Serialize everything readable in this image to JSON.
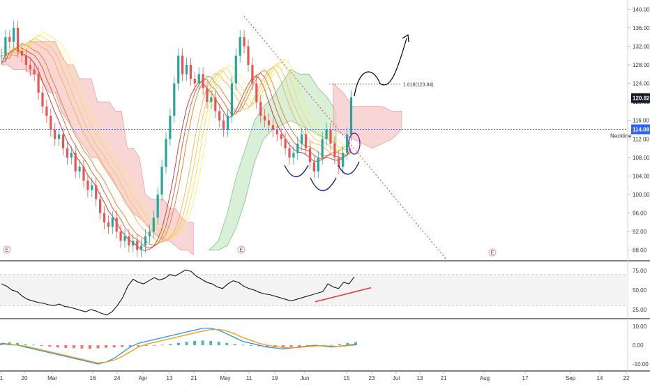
{
  "colors": {
    "up": "#26a69a",
    "down": "#ef5350",
    "cloud_red": "#f8c9c9",
    "cloud_green": "#cfeccf",
    "neckline": "#2962ff",
    "last_price_bg": "#131722",
    "neckline_bg": "#2962ff",
    "rsi": "#000000",
    "macd": "#2196f3",
    "signal": "#ff9800"
  },
  "annotations": {
    "neckline_label": "Neckline",
    "fib_label": "1.618(123.84)",
    "event_marker": "E"
  },
  "chart_data": [
    {
      "type": "line",
      "panel": "price",
      "x_ticks": [
        "1",
        "20",
        "Mar",
        "16",
        "24",
        "Apr",
        "13",
        "21",
        "May",
        "11",
        "19",
        "Jun",
        "15",
        "23",
        "Jul",
        "13",
        "21",
        "Aug",
        "17",
        "Sep",
        "14",
        "22"
      ],
      "y_ticks": [
        "140.00",
        "136.00",
        "132.00",
        "128.00",
        "124.00",
        "120.00",
        "116.00",
        "112.00",
        "108.00",
        "104.00",
        "100.00",
        "96.00",
        "92.00",
        "88.00"
      ],
      "ylim": [
        86,
        142
      ],
      "last_price": "120.82",
      "neckline_price": "114.08",
      "fib_level": 123.84,
      "series": [
        {
          "style": "candlestick",
          "values": [
            130,
            134,
            133,
            136,
            131,
            130,
            128,
            127,
            126,
            122,
            119,
            117,
            114,
            112,
            113,
            110,
            108,
            109,
            105,
            106,
            103,
            101,
            102,
            99,
            96,
            94,
            93,
            95,
            92,
            90,
            91,
            89,
            90,
            88,
            89,
            91,
            92,
            95,
            100,
            106,
            112,
            117,
            124,
            130,
            126,
            128,
            125,
            124,
            126,
            123,
            120,
            121,
            118,
            116,
            114,
            117,
            124,
            130,
            134,
            132,
            128,
            124,
            120,
            117,
            116,
            115,
            114,
            113,
            112,
            110,
            108,
            109,
            111,
            113,
            110,
            107,
            105,
            108,
            112,
            114,
            111,
            108,
            106,
            109,
            113,
            121
          ]
        }
      ]
    },
    {
      "type": "line",
      "panel": "rsi",
      "y_ticks": [
        "75.00",
        "50.00",
        "25.00"
      ],
      "ylim": [
        15,
        85
      ],
      "series": [
        {
          "values": [
            58,
            55,
            50,
            48,
            42,
            38,
            36,
            34,
            33,
            31,
            30,
            32,
            29,
            28,
            26,
            24,
            22,
            25,
            23,
            20,
            18,
            22,
            30,
            40,
            55,
            64,
            60,
            58,
            62,
            66,
            63,
            65,
            70,
            68,
            72,
            76,
            74,
            68,
            64,
            60,
            58,
            54,
            52,
            58,
            62,
            60,
            55,
            52,
            50,
            47,
            45,
            44,
            42,
            40,
            38,
            36,
            38,
            40,
            42,
            44,
            46,
            48,
            58,
            54,
            52,
            60,
            58,
            67
          ]
        }
      ]
    },
    {
      "type": "bar",
      "panel": "macd",
      "y_ticks": [
        "10.00",
        "0.00",
        "-10.00"
      ],
      "ylim": [
        -13,
        13
      ],
      "series": [
        {
          "values": [
            1,
            1.5,
            1.2,
            0.5,
            0.2,
            -0.4,
            -0.8,
            -1.2,
            -1.5,
            -1.6,
            -1.8,
            -2,
            -1.7,
            -1.4,
            -1.2,
            -1,
            -0.8,
            -0.6,
            -0.4,
            -0.2,
            0.2,
            0.6,
            1.2,
            1.8,
            2.2,
            2.5,
            2.2,
            1.8,
            1.2,
            0.6,
            0.2,
            -0.3,
            -0.6,
            -0.9,
            -1.1,
            -1.2,
            -1.0,
            -0.8,
            -0.6,
            -0.4,
            -0.2,
            0.2,
            0.6,
            1.2,
            1.6
          ]
        },
        {
          "values": [
            1,
            0.5,
            0,
            -1,
            -2,
            -3,
            -4,
            -5,
            -6,
            -7,
            -8,
            -9,
            -10,
            -9,
            -7,
            -4,
            -1,
            1,
            2,
            3,
            4,
            5,
            6,
            7,
            8,
            9,
            9,
            8,
            6,
            4,
            2,
            1,
            0,
            -1,
            -1.5,
            -2,
            -1.5,
            -1,
            -0.5,
            0,
            -0.5,
            -1,
            -0.5,
            0,
            0.5
          ]
        },
        {
          "values": [
            0.5,
            0.3,
            0.1,
            -0.5,
            -1.5,
            -2.5,
            -3.5,
            -4.5,
            -5.5,
            -6.5,
            -7.5,
            -8.5,
            -9.5,
            -9,
            -8,
            -6,
            -3.5,
            -1,
            0.5,
            1.5,
            2.5,
            3.5,
            4.5,
            5.5,
            6.5,
            7.5,
            8.3,
            8.4,
            7.5,
            6,
            4,
            2.5,
            1,
            0,
            -0.7,
            -1.3,
            -1.4,
            -1.2,
            -0.8,
            -0.4,
            -0.3,
            -0.5,
            -0.6,
            -0.3,
            0.1
          ]
        }
      ]
    }
  ]
}
